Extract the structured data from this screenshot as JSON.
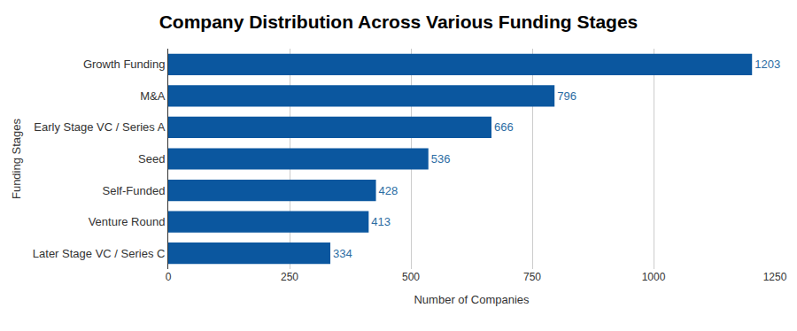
{
  "chart_data": {
    "type": "bar",
    "orientation": "horizontal",
    "title": "Company Distribution Across Various Funding Stages",
    "xlabel": "Number of Companies",
    "ylabel": "Funding Stages",
    "categories": [
      "Growth Funding",
      "M&A",
      "Early Stage VC / Series A",
      "Seed",
      "Self-Funded",
      "Venture Round",
      "Later Stage VC / Series C"
    ],
    "values": [
      1203,
      796,
      666,
      536,
      428,
      413,
      334
    ],
    "color": "#0b579f",
    "xlim": [
      0,
      1250
    ],
    "xticks": [
      0,
      250,
      500,
      750,
      1000,
      1250
    ],
    "grid": true,
    "data_labels": true
  }
}
